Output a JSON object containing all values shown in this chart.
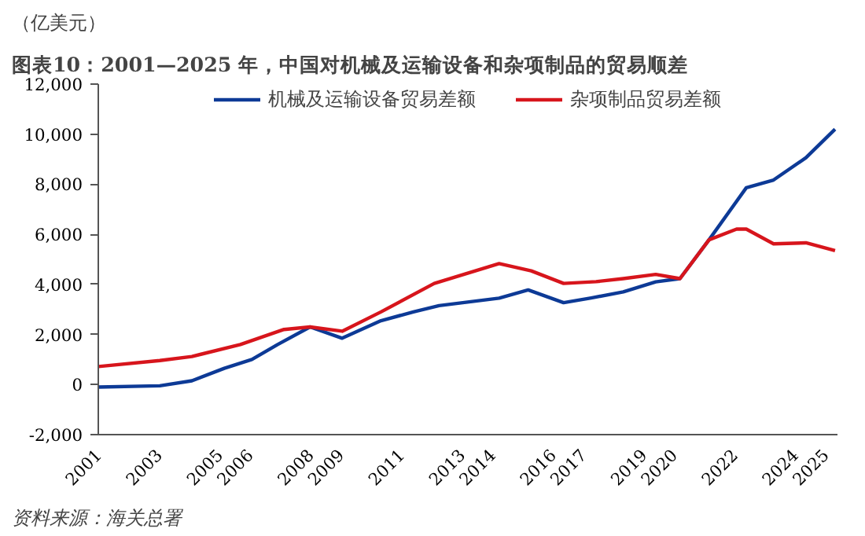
{
  "chart_data": {
    "type": "line",
    "title": "图表10：2001—2025 年，中国对机械及运输设备和杂项制品的贸易顺差",
    "ylabel": "（亿美元）",
    "series": [
      {
        "name": "机械及运输设备贸易差额",
        "color": "#0d3a96",
        "x": [
          2001.0,
          2003.03,
          2004.09,
          2005.16,
          2006.07,
          2006.92,
          2007.99,
          2009.05,
          2010.33,
          2011.4,
          2012.25,
          2014.23,
          2015.19,
          2016.36,
          2017.27,
          2018.33,
          2019.4,
          2020.2,
          2021.16,
          2022.39,
          2023.29,
          2024.36,
          2025.32
        ],
        "values": [
          -100,
          -50,
          150,
          650,
          1000,
          1600,
          2300,
          1850,
          2550,
          2900,
          3150,
          3450,
          3780,
          3270,
          3460,
          3700,
          4100,
          4230,
          5780,
          7860,
          8170,
          9060,
          10200
        ]
      },
      {
        "name": "杂项制品贸易差额",
        "color": "#d7151c",
        "x": [
          2001.0,
          2003.03,
          2004.09,
          2005.69,
          2007.13,
          2007.99,
          2009.05,
          2010.33,
          2012.09,
          2012.79,
          2014.23,
          2015.29,
          2016.36,
          2017.43,
          2018.33,
          2019.4,
          2020.2,
          2021.16,
          2022.07,
          2022.39,
          2023.29,
          2024.36,
          2025.32
        ],
        "values": [
          720,
          960,
          1120,
          1600,
          2200,
          2300,
          2130,
          2900,
          4040,
          4300,
          4830,
          4540,
          4040,
          4110,
          4230,
          4400,
          4230,
          5780,
          6210,
          6210,
          5620,
          5660,
          5350
        ]
      }
    ],
    "xlim": [
      2001,
      2025.4
    ],
    "xticks": [
      2001,
      2003,
      2005,
      2006,
      2008,
      2009,
      2011,
      2013,
      2014,
      2016,
      2017,
      2019,
      2020,
      2022,
      2024,
      2025
    ],
    "ylim": [
      -2000,
      12000
    ],
    "yticks": [
      {
        "value": -2000,
        "label": "-2,000"
      },
      0,
      {
        "value": 2000,
        "label": "2,000"
      },
      {
        "value": 4000,
        "label": "4,000"
      },
      {
        "value": 6000,
        "label": "6,000"
      },
      {
        "value": 8000,
        "label": "8,000"
      },
      {
        "value": 10000,
        "label": "10,000"
      },
      {
        "value": 12000,
        "label": "12,000"
      }
    ],
    "grid": false,
    "legend": "top",
    "marker": "none",
    "line_style": "solid",
    "annotations": [
      "资料来源：海关总署"
    ]
  }
}
